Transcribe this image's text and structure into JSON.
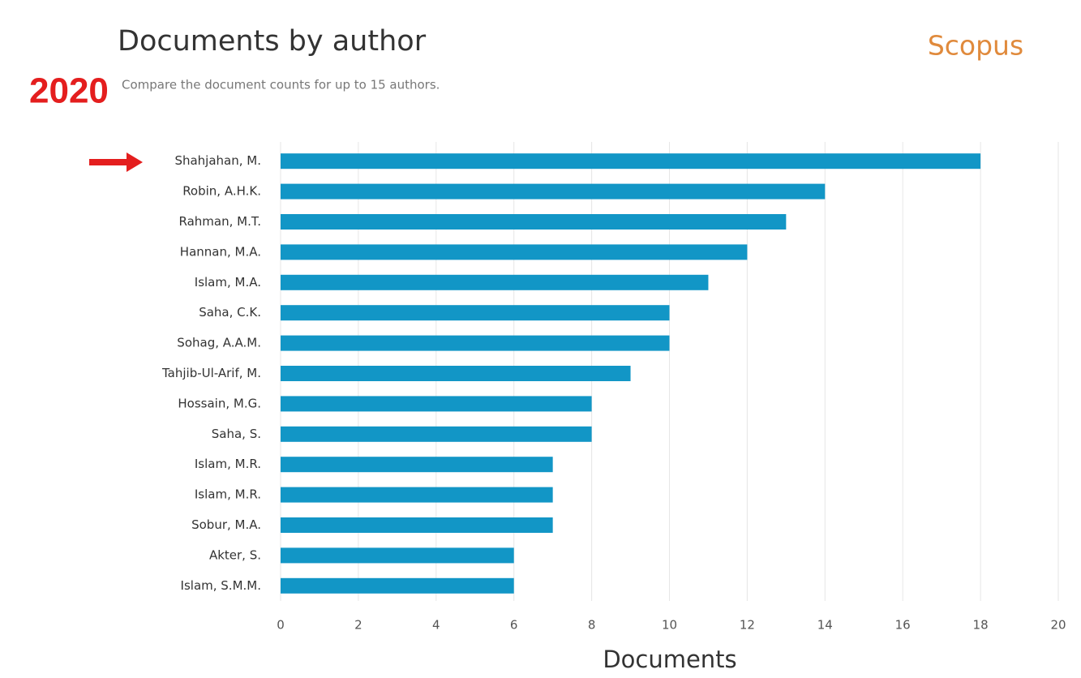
{
  "chart_data": {
    "type": "bar",
    "orientation": "horizontal",
    "title": "Documents by author",
    "subtitle": "Compare the document counts for up to 15 authors.",
    "brand": "Scopus",
    "annotation": "2020",
    "xlabel": "Documents",
    "categories": [
      "Shahjahan, M.",
      "Robin, A.H.K.",
      "Rahman, M.T.",
      "Hannan, M.A.",
      "Islam, M.A.",
      "Saha, C.K.",
      "Sohag, A.A.M.",
      "Tahjib-Ul-Arif, M.",
      "Hossain, M.G.",
      "Saha, S.",
      "Islam, M.R.",
      "Islam, M.R.",
      "Sobur, M.A.",
      "Akter, S.",
      "Islam, S.M.M."
    ],
    "values": [
      18,
      14,
      13,
      12,
      11,
      10,
      10,
      9,
      8,
      8,
      7,
      7,
      7,
      6,
      6
    ],
    "color": "#1296c6",
    "xlim": [
      0,
      20
    ],
    "xticks": [
      0,
      2,
      4,
      6,
      8,
      10,
      12,
      14,
      16,
      18,
      20
    ],
    "grid": true
  }
}
